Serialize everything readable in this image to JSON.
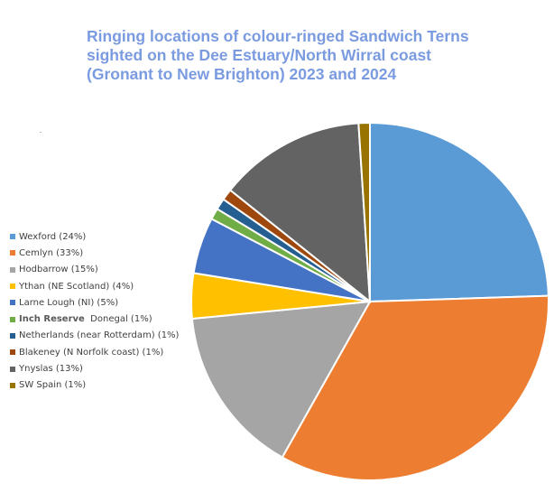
{
  "chart_data": {
    "type": "pie",
    "title_lines": [
      "Ringing locations of colour-ringed Sandwich Terns",
      "sighted on the Dee Estuary/North Wirral coast",
      "(Gronant to New Brighton)  2023 and 2024"
    ],
    "legend_placement": "left",
    "slices": [
      {
        "name": "Wexford",
        "value": 24,
        "color": "#5b9bd5",
        "legend": "Wexford (24%)"
      },
      {
        "name": "Cemlyn",
        "value": 33,
        "color": "#ed7d31",
        "legend": "Cemlyn (33%)"
      },
      {
        "name": "Hodbarrow",
        "value": 15,
        "color": "#a5a5a5",
        "legend": "Hodbarrow (15%)"
      },
      {
        "name": "Ythan",
        "value": 4,
        "color": "#ffc000",
        "legend": "Ythan (NE Scotland) (4%)"
      },
      {
        "name": "Larne Lough",
        "value": 5,
        "color": "#4472c4",
        "legend": "Larne Lough (NI) (5%)"
      },
      {
        "name": "Inch Reserve Donegal",
        "value": 1,
        "color": "#70ad47",
        "legend_bold": "Inch Reserve",
        "legend_rest": "  Donegal (1%)"
      },
      {
        "name": "Netherlands",
        "value": 1,
        "color": "#255e91",
        "legend": "Netherlands (near Rotterdam) (1%)"
      },
      {
        "name": "Blakeney",
        "value": 1,
        "color": "#9e480e",
        "legend": "Blakeney (N Norfolk coast) (1%)"
      },
      {
        "name": "Ynyslas",
        "value": 13,
        "color": "#636363",
        "legend": "Ynyslas (13%)"
      },
      {
        "name": "SW Spain",
        "value": 1,
        "color": "#997300",
        "legend": "SW Spain (1%)"
      }
    ]
  }
}
